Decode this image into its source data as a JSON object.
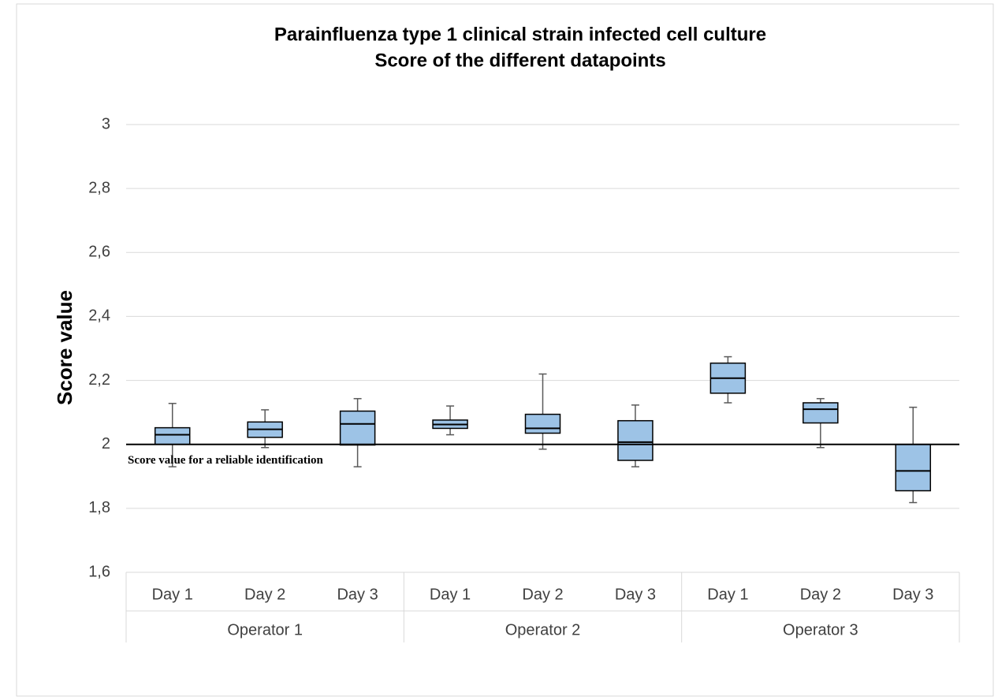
{
  "chart_data": {
    "type": "box",
    "title": "Parainfluenza type 1 clinical strain infected cell culture",
    "subtitle": "Score of the different datapoints",
    "y_label": "Score value",
    "categories": [
      "Day 1",
      "Day 2",
      "Day 3",
      "Day 1",
      "Day 2",
      "Day 3",
      "Day 1",
      "Day 2",
      "Day 3"
    ],
    "groups": [
      "Operator 1",
      "Operator 2",
      "Operator 3"
    ],
    "color": "#9dc3e6",
    "boxes": [
      {
        "min": 1.93,
        "q1": 2.0,
        "median": 2.03,
        "q3": 2.052,
        "max": 2.128
      },
      {
        "min": 1.99,
        "q1": 2.022,
        "median": 2.047,
        "q3": 2.07,
        "max": 2.108
      },
      {
        "min": 1.93,
        "q1": 1.998,
        "median": 2.064,
        "q3": 2.104,
        "max": 2.143
      },
      {
        "min": 2.03,
        "q1": 2.05,
        "median": 2.062,
        "q3": 2.076,
        "max": 2.12
      },
      {
        "min": 1.985,
        "q1": 2.035,
        "median": 2.05,
        "q3": 2.094,
        "max": 2.22
      },
      {
        "min": 1.93,
        "q1": 1.95,
        "median": 2.007,
        "q3": 2.074,
        "max": 2.123
      },
      {
        "min": 2.13,
        "q1": 2.16,
        "median": 2.207,
        "q3": 2.254,
        "max": 2.274
      },
      {
        "min": 1.99,
        "q1": 2.067,
        "median": 2.11,
        "q3": 2.13,
        "max": 2.143
      },
      {
        "min": 1.818,
        "q1": 1.855,
        "median": 1.917,
        "q3": 2.0,
        "max": 2.116
      }
    ],
    "reference": {
      "value": 2,
      "label": "Score value for a reliable identification"
    },
    "ylim": [
      1.6,
      3
    ],
    "yticks": [
      {
        "value": 1.6,
        "label": "1,6"
      },
      {
        "value": 1.8,
        "label": "1,8"
      },
      2,
      {
        "value": 2.2,
        "label": "2,2"
      },
      {
        "value": 2.4,
        "label": "2,4"
      },
      {
        "value": 2.6,
        "label": "2,6"
      },
      {
        "value": 2.8,
        "label": "2,8"
      },
      3
    ],
    "grid": true
  }
}
